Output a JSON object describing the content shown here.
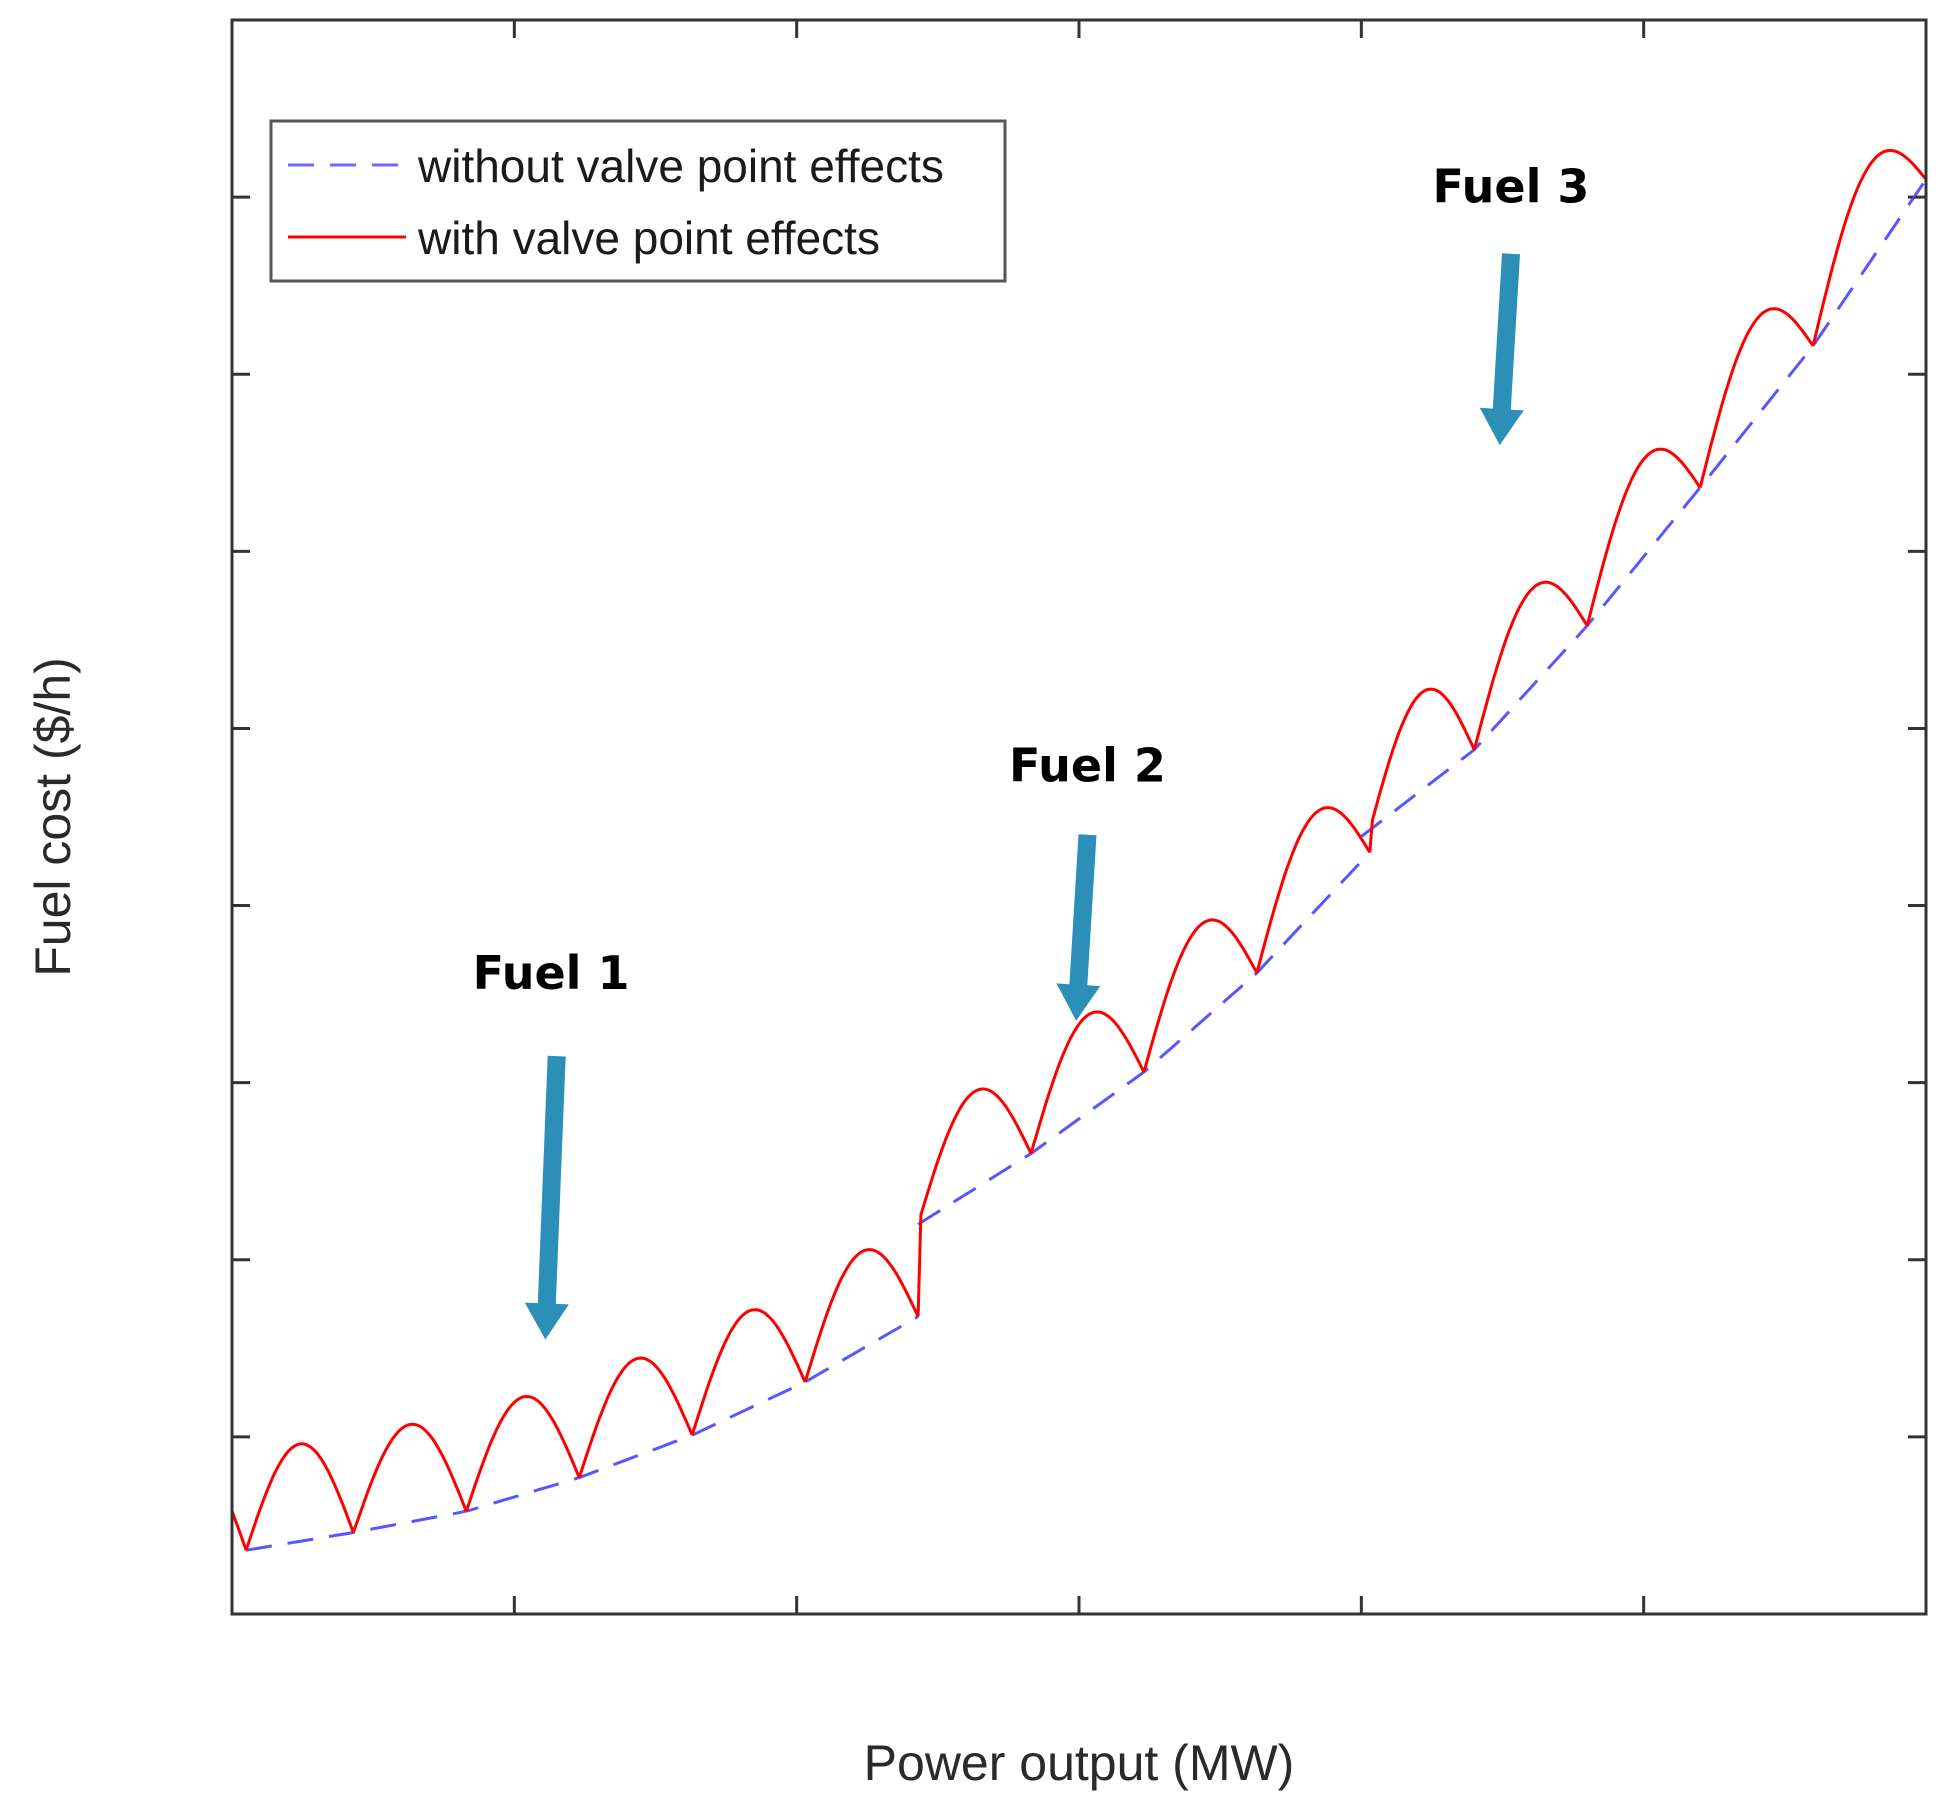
{
  "colors": {
    "without_series": "#3a3aff",
    "with_series": "#ff0000",
    "arrow": "#2b8fb8",
    "axes": "#333333",
    "legend_border": "#555555"
  },
  "chart_data": {
    "type": "line",
    "title": "",
    "xlabel": "Power output (MW)",
    "ylabel": "Fuel cost ($/h)",
    "xlim": [
      0,
      6
    ],
    "ylim": [
      0,
      9
    ],
    "xticks": [
      0,
      1,
      2,
      3,
      4,
      5,
      6
    ],
    "yticks": [
      1,
      2,
      3,
      4,
      5,
      6,
      7,
      8
    ],
    "xtick_labels": [],
    "ytick_labels": [],
    "grid": false,
    "legend": {
      "position": "top-left",
      "entries": [
        {
          "series": "without",
          "label": "without valve point effects",
          "style": "dashed"
        },
        {
          "series": "with",
          "label": "with valve point effects",
          "style": "solid"
        }
      ]
    },
    "valve_amplitude": 0.55,
    "series": [
      {
        "key": "without",
        "name": "without valve point effects",
        "style": "dashed",
        "segments": [
          {
            "fuel": "Fuel 1",
            "x": [
              0.05,
              0.43,
              0.83,
              1.23,
              1.63,
              2.03,
              2.43
            ],
            "y": [
              0.36,
              0.46,
              0.58,
              0.77,
              1.01,
              1.31,
              1.68
            ]
          },
          {
            "fuel": "Fuel 2",
            "x": [
              2.43,
              2.83,
              3.23,
              3.63,
              4.03
            ],
            "y": [
              2.2,
              2.6,
              3.06,
              3.62,
              4.3
            ]
          },
          {
            "fuel": "Fuel 3",
            "x": [
              4.0,
              4.4,
              4.8,
              5.2,
              5.6,
              6.0
            ],
            "y": [
              4.39,
              4.88,
              5.58,
              6.36,
              7.16,
              8.1
            ]
          }
        ]
      },
      {
        "key": "with",
        "name": "with valve point effects",
        "style": "solid",
        "valley_x": [
          0.05,
          0.43,
          0.83,
          1.23,
          1.63,
          2.03,
          2.43,
          2.83,
          3.23,
          3.63,
          4.03,
          4.4,
          4.8,
          5.2,
          5.6,
          6.0
        ]
      }
    ],
    "annotations": [
      {
        "text": "Fuel 1",
        "x": 1.13,
        "y": 3.53,
        "arrow_from": [
          1.15,
          3.15
        ],
        "arrow_to": [
          1.11,
          1.55
        ]
      },
      {
        "text": "Fuel 2",
        "x": 3.03,
        "y": 4.7,
        "arrow_from": [
          3.03,
          4.4
        ],
        "arrow_to": [
          2.99,
          3.35
        ]
      },
      {
        "text": "Fuel 3",
        "x": 4.53,
        "y": 7.97,
        "arrow_from": [
          4.53,
          7.68
        ],
        "arrow_to": [
          4.49,
          6.6
        ]
      }
    ]
  }
}
